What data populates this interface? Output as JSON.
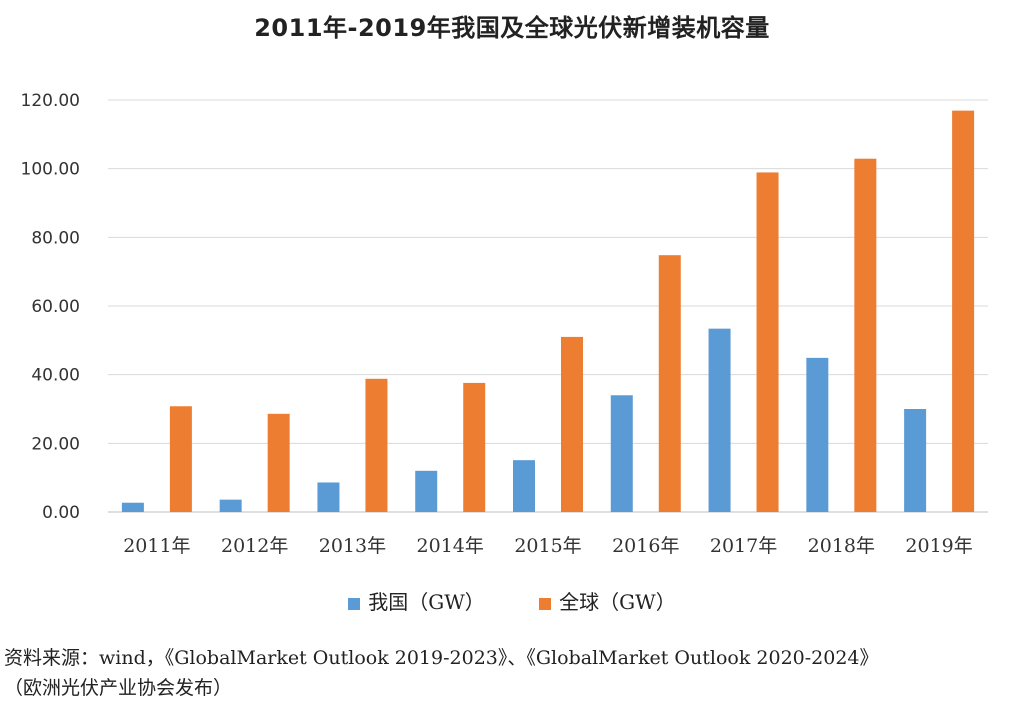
{
  "chart_data": {
    "type": "bar",
    "title": "2011年-2019年我国及全球光伏新增装机容量",
    "categories": [
      "2011年",
      "2012年",
      "2013年",
      "2014年",
      "2015年",
      "2016年",
      "2017年",
      "2018年",
      "2019年"
    ],
    "series": [
      {
        "name": "我国（GW）",
        "color": "#5b9bd5",
        "values": [
          2.7,
          3.6,
          8.6,
          12.0,
          15.1,
          34.0,
          53.4,
          44.9,
          30.0
        ]
      },
      {
        "name": "全球（GW）",
        "color": "#ed7d31",
        "values": [
          30.8,
          28.6,
          38.8,
          37.6,
          51.0,
          74.8,
          98.9,
          102.9,
          116.9
        ]
      }
    ],
    "y_ticks": [
      "0.00",
      "20.00",
      "40.00",
      "60.00",
      "80.00",
      "100.00",
      "120.00"
    ],
    "ylim": [
      0,
      120
    ],
    "grid": true,
    "legend_position": "bottom",
    "source_line1": "资料来源：wind，《GlobalMarket Outlook 2019-2023》、《GlobalMarket Outlook 2020-2024》",
    "source_line2": "（欧洲光伏产业协会发布）"
  }
}
